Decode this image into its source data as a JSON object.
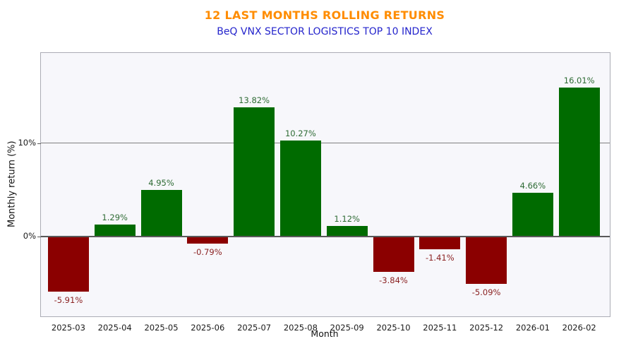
{
  "header": {
    "title": "12 LAST MONTHS ROLLING RETURNS",
    "subtitle": "BeQ VNX SECTOR LOGISTICS TOP 10 INDEX"
  },
  "axes": {
    "xlabel": "Month",
    "ylabel": "Monthly return (%)",
    "yticks": [
      "0%",
      "10%"
    ]
  },
  "colors": {
    "title": "#FF8C00",
    "subtitle": "#2424CC",
    "positive_bar": "#006B00",
    "negative_bar": "#8B0000",
    "positive_label": "#2E6B34",
    "negative_label": "#8B2222",
    "plot_background": "#F7F7FB",
    "plot_border": "#ABACB5",
    "gridline": "#808080",
    "zero_line": "#595959",
    "tick_text": "#1A1A1A"
  },
  "chart_data": {
    "type": "bar",
    "title": "12 LAST MONTHS ROLLING RETURNS",
    "subtitle": "BeQ VNX SECTOR LOGISTICS TOP 10 INDEX",
    "xlabel": "Month",
    "ylabel": "Monthly return (%)",
    "categories": [
      "2025-03",
      "2025-04",
      "2025-05",
      "2025-06",
      "2025-07",
      "2025-08",
      "2025-09",
      "2025-10",
      "2025-11",
      "2025-12",
      "2026-01",
      "2026-02"
    ],
    "values": [
      -5.91,
      1.29,
      4.95,
      -0.79,
      13.82,
      10.27,
      1.12,
      -3.84,
      -1.41,
      -5.09,
      4.66,
      16.01
    ],
    "value_labels": [
      "-5.91%",
      "1.29%",
      "4.95%",
      "-0.79%",
      "13.82%",
      "10.27%",
      "1.12%",
      "-3.84%",
      "-1.41%",
      "-5.09%",
      "4.66%",
      "16.01%"
    ],
    "color_rule": "green bar if value >= 0, dark red bar if value < 0",
    "ylim": [
      -8.6,
      19.7
    ],
    "yticks": [
      {
        "value": 0,
        "label": "0%"
      },
      {
        "value": 10,
        "label": "10%"
      }
    ],
    "grid": "single horizontal gridline at 10%, solid zero axis line at 0%",
    "legend": null
  }
}
